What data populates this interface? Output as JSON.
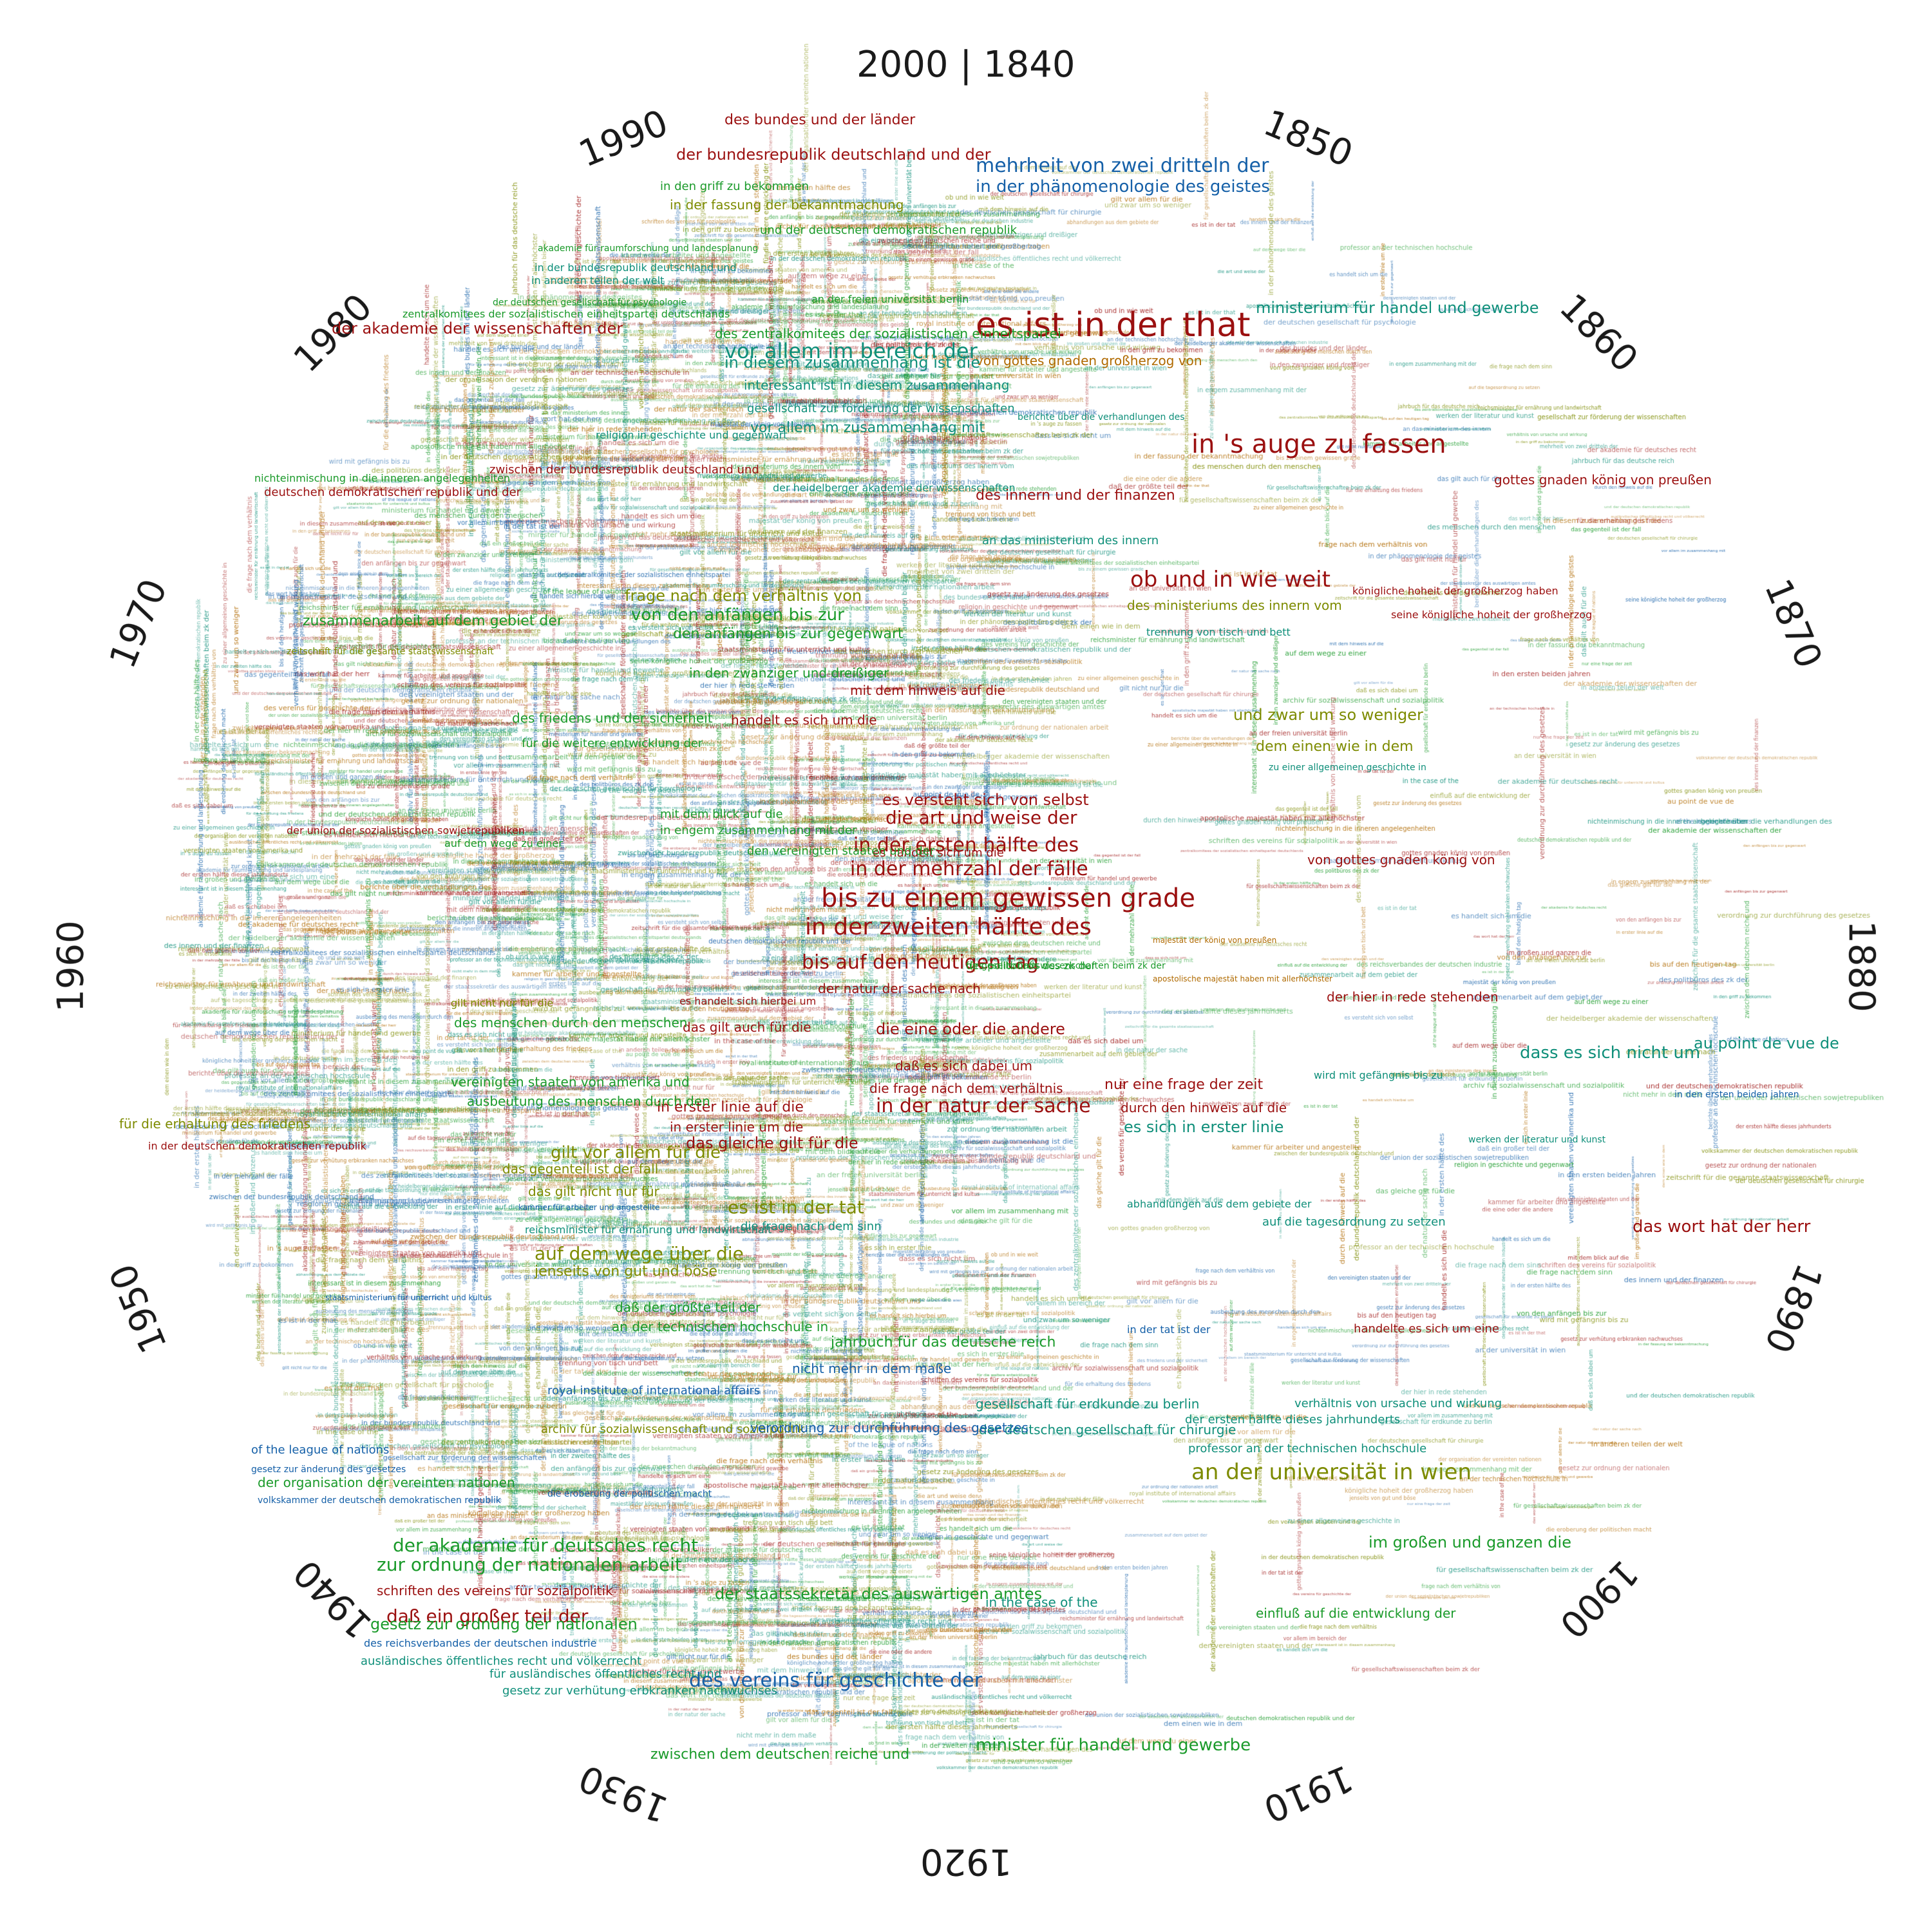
{
  "colors": {
    "dark_red": "#9b1010",
    "olive": "#7d8b00",
    "green": "#1a9a2a",
    "teal": "#0f8f7a",
    "blue": "#1560a8",
    "orange_brown": "#b06a00"
  },
  "title": "2000 | 1840",
  "years": [
    "1850",
    "1860",
    "1870",
    "1880",
    "1890",
    "1900",
    "1910",
    "1920",
    "1930",
    "1940",
    "1950",
    "1960",
    "1970",
    "1980",
    "1990"
  ],
  "phrases": [
    {
      "text": "es ist in der that",
      "color": "dark_red",
      "size": 52
    },
    {
      "text": "in 's auge zu fassen",
      "color": "dark_red",
      "size": 40
    },
    {
      "text": "ob und in wie weit",
      "color": "dark_red",
      "size": 34
    },
    {
      "text": "gottes gnaden könig von preußen",
      "color": "dark_red",
      "size": 20
    },
    {
      "text": "königliche hoheit der großherzog haben",
      "color": "dark_red",
      "size": 16
    },
    {
      "text": "seine königliche hoheit der großherzog",
      "color": "dark_red",
      "size": 16
    },
    {
      "text": "von gottes gnaden könig von",
      "color": "dark_red",
      "size": 20
    },
    {
      "text": "der hier in rede stehenden",
      "color": "dark_red",
      "size": 20
    },
    {
      "text": "das wort hat der herr",
      "color": "dark_red",
      "size": 26
    },
    {
      "text": "mehrheit von zwei dritteln der",
      "color": "blue",
      "size": 30
    },
    {
      "text": "in der phänomenologie des geistes",
      "color": "blue",
      "size": 26
    },
    {
      "text": "von gottes gnaden großherzog von",
      "color": "orange_brown",
      "size": 20
    },
    {
      "text": "ministerium für handel und gewerbe",
      "color": "teal",
      "size": 24
    },
    {
      "text": "berichte über die verhandlungen des",
      "color": "teal",
      "size": 14
    },
    {
      "text": "des innern und der finanzen",
      "color": "dark_red",
      "size": 22
    },
    {
      "text": "an das ministerium des innern",
      "color": "teal",
      "size": 18
    },
    {
      "text": "des ministeriums des innern vom",
      "color": "olive",
      "size": 20
    },
    {
      "text": "trennung von tisch und bett",
      "color": "teal",
      "size": 16
    },
    {
      "text": "und zwar um so weniger",
      "color": "olive",
      "size": 24
    },
    {
      "text": "dem einen wie in dem",
      "color": "olive",
      "size": 22
    },
    {
      "text": "zu einer allgemeinen geschichte in",
      "color": "teal",
      "size": 14
    },
    {
      "text": "majestät der könig von preußen",
      "color": "orange_brown",
      "size": 12
    },
    {
      "text": "apostolische majestät haben mit allerhöchster",
      "color": "orange_brown",
      "size": 12
    },
    {
      "text": "nur eine frage der zeit",
      "color": "dark_red",
      "size": 22
    },
    {
      "text": "durch den hinweis auf die",
      "color": "dark_red",
      "size": 20
    },
    {
      "text": "es sich in erster linie",
      "color": "teal",
      "size": 24
    },
    {
      "text": "dass es sich nicht um",
      "color": "teal",
      "size": 26
    },
    {
      "text": "au point de vue de",
      "color": "teal",
      "size": 24
    },
    {
      "text": "in den ersten beiden jahren",
      "color": "blue",
      "size": 14
    },
    {
      "text": "werken der literatur und kunst",
      "color": "teal",
      "size": 14
    },
    {
      "text": "wird mit gefängnis bis zu",
      "color": "teal",
      "size": 16
    },
    {
      "text": "auf die tagesordnung zu setzen",
      "color": "teal",
      "size": 18
    },
    {
      "text": "abhandlungen aus dem gebiete der",
      "color": "teal",
      "size": 16
    },
    {
      "text": "verhältnis von ursache und wirkung",
      "color": "teal",
      "size": 18
    },
    {
      "text": "handelte es sich um eine",
      "color": "dark_red",
      "size": 18
    },
    {
      "text": "in der tat ist der",
      "color": "blue",
      "size": 16
    },
    {
      "text": "der ersten hälfte dieses jahrhunderts",
      "color": "teal",
      "size": 18
    },
    {
      "text": "professor an der technischen hochschule",
      "color": "teal",
      "size": 18
    },
    {
      "text": "an der universität in wien",
      "color": "olive",
      "size": 34
    },
    {
      "text": "der deutschen gesellschaft für chirurgie",
      "color": "teal",
      "size": 20
    },
    {
      "text": "gesellschaft für erdkunde zu berlin",
      "color": "teal",
      "size": 20
    },
    {
      "text": "im großen und ganzen die",
      "color": "green",
      "size": 24
    },
    {
      "text": "einfluß auf die entwicklung der",
      "color": "green",
      "size": 20
    },
    {
      "text": "in the case of the",
      "color": "teal",
      "size": 20
    },
    {
      "text": "minister für handel und gewerbe",
      "color": "green",
      "size": 26
    },
    {
      "text": "zwischen dem deutschen reiche und",
      "color": "green",
      "size": 22
    },
    {
      "text": "des vereins für geschichte der",
      "color": "blue",
      "size": 30
    },
    {
      "text": "der staatssekretär des auswärtigen amtes",
      "color": "green",
      "size": 24
    },
    {
      "text": "die eroberung der politischen macht",
      "color": "blue",
      "size": 14
    },
    {
      "text": "archiv für sozialwissenschaft und sozialpolitik",
      "color": "olive",
      "size": 18
    },
    {
      "text": "royal institute of international affairs",
      "color": "blue",
      "size": 18
    },
    {
      "text": "verordnung zur durchführung des gesetzes",
      "color": "blue",
      "size": 20
    },
    {
      "text": "nicht mehr in dem maße",
      "color": "blue",
      "size": 20
    },
    {
      "text": "jahrbuch für das deutsche reich",
      "color": "green",
      "size": 22
    },
    {
      "text": "an der technischen hochschule in",
      "color": "green",
      "size": 20
    },
    {
      "text": "daß der größte teil der",
      "color": "green",
      "size": 20
    },
    {
      "text": "daß ein großer teil der",
      "color": "dark_red",
      "size": 28
    },
    {
      "text": "schriften des vereins für sozialpolitik",
      "color": "dark_red",
      "size": 20
    },
    {
      "text": "zur ordnung der nationalen arbeit",
      "color": "green",
      "size": 28
    },
    {
      "text": "der akademie für deutsches recht",
      "color": "green",
      "size": 28
    },
    {
      "text": "gesetz zur ordnung der nationalen",
      "color": "green",
      "size": 24
    },
    {
      "text": "des reichsverbandes der deutschen industrie",
      "color": "blue",
      "size": 16
    },
    {
      "text": "ausländisches öffentliches recht und völkerrecht",
      "color": "teal",
      "size": 18
    },
    {
      "text": "für ausländisches öffentliches recht und",
      "color": "teal",
      "size": 18
    },
    {
      "text": "gesetz zur verhütung erbkranken nachwuchses",
      "color": "teal",
      "size": 18
    },
    {
      "text": "of the league of nations",
      "color": "blue",
      "size": 18
    },
    {
      "text": "gesetz zur änderung des gesetzes",
      "color": "blue",
      "size": 14
    },
    {
      "text": "der organisation der vereinten nationen",
      "color": "green",
      "size": 20
    },
    {
      "text": "volkskammer der deutschen demokratischen republik",
      "color": "blue",
      "size": 14
    },
    {
      "text": "staatsministerium für unterricht und kultus",
      "color": "blue",
      "size": 12
    },
    {
      "text": "kammer für arbeiter und angestellte",
      "color": "blue",
      "size": 12
    },
    {
      "text": "reichsminister für ernährung und landwirtschaft",
      "color": "teal",
      "size": 16
    },
    {
      "text": "auf dem wege über die",
      "color": "olive",
      "size": 28
    },
    {
      "text": "jenseits von gut und böse",
      "color": "olive",
      "size": 22
    },
    {
      "text": "das gilt nicht nur für",
      "color": "olive",
      "size": 20
    },
    {
      "text": "das gegenteil ist der fall",
      "color": "olive",
      "size": 20
    },
    {
      "text": "gilt vor allem für die",
      "color": "olive",
      "size": 26
    },
    {
      "text": "es ist in der tat",
      "color": "olive",
      "size": 28
    },
    {
      "text": "die frage nach dem sinn",
      "color": "teal",
      "size": 18
    },
    {
      "text": "in erster linie auf die",
      "color": "dark_red",
      "size": 22
    },
    {
      "text": "in erster linie um die",
      "color": "dark_red",
      "size": 20
    },
    {
      "text": "das gleiche gilt für die",
      "color": "dark_red",
      "size": 24
    },
    {
      "text": "daß es sich dabei um",
      "color": "dark_red",
      "size": 20
    },
    {
      "text": "die frage nach dem verhältnis",
      "color": "dark_red",
      "size": 20
    },
    {
      "text": "in der natur der sache",
      "color": "dark_red",
      "size": 30
    },
    {
      "text": "die eine oder die andere",
      "color": "dark_red",
      "size": 24
    },
    {
      "text": "der natur der sache nach",
      "color": "dark_red",
      "size": 20
    },
    {
      "text": "bis auf den heutigen tag",
      "color": "dark_red",
      "size": 30
    },
    {
      "text": "in der zweiten hälfte des",
      "color": "dark_red",
      "size": 36
    },
    {
      "text": "bis zu einem gewissen grade",
      "color": "dark_red",
      "size": 40
    },
    {
      "text": "in der mehrzahl der fälle",
      "color": "dark_red",
      "size": 30
    },
    {
      "text": "in der ersten hälfte des",
      "color": "dark_red",
      "size": 30
    },
    {
      "text": "die art und weise der",
      "color": "dark_red",
      "size": 28
    },
    {
      "text": "es versteht sich von selbst",
      "color": "dark_red",
      "size": 24
    },
    {
      "text": "handelt es sich um die",
      "color": "dark_red",
      "size": 20
    },
    {
      "text": "es handelt sich um die",
      "color": "dark_red",
      "size": 18
    },
    {
      "text": "mit dem hinweis auf die",
      "color": "dark_red",
      "size": 20
    },
    {
      "text": "es handelt sich hierbei um",
      "color": "dark_red",
      "size": 16
    },
    {
      "text": "das gilt auch für die",
      "color": "dark_red",
      "size": 20
    },
    {
      "text": "gilt nicht nur für die",
      "color": "olive",
      "size": 16
    },
    {
      "text": "vereinigten staaten von amerika und",
      "color": "green",
      "size": 20
    },
    {
      "text": "ausbeutung des menschen durch den",
      "color": "green",
      "size": 20
    },
    {
      "text": "des menschen durch den menschen",
      "color": "green",
      "size": 20
    },
    {
      "text": "für die erhaltung des friedens",
      "color": "olive",
      "size": 20
    },
    {
      "text": "in der deutschen demokratischen republik",
      "color": "dark_red",
      "size": 16
    },
    {
      "text": "der union der sozialistischen sowjetrepubliken",
      "color": "dark_red",
      "size": 16
    },
    {
      "text": "des friedens und der sicherheit",
      "color": "green",
      "size": 20
    },
    {
      "text": "frage nach dem verhältnis von",
      "color": "olive",
      "size": 24
    },
    {
      "text": "von den anfängen bis zur",
      "color": "green",
      "size": 26
    },
    {
      "text": "den anfängen bis zur gegenwart",
      "color": "green",
      "size": 22
    },
    {
      "text": "in den zwanziger und dreißiger",
      "color": "green",
      "size": 20
    },
    {
      "text": "mit dem blick auf die",
      "color": "green",
      "size": 18
    },
    {
      "text": "in engem zusammenhang mit der",
      "color": "green",
      "size": 18
    },
    {
      "text": "für die weitere entwicklung der",
      "color": "green",
      "size": 18
    },
    {
      "text": "den vereinigten staaten und der",
      "color": "green",
      "size": 18
    },
    {
      "text": "auf dem wege zu einer",
      "color": "green",
      "size": 16
    },
    {
      "text": "zeitschrift für die gesamte staatswissenschaft",
      "color": "olive",
      "size": 14
    },
    {
      "text": "zusammenarbeit auf dem gebiet der",
      "color": "green",
      "size": 22
    },
    {
      "text": "nichteinmischung in die inneren angelegenheiten",
      "color": "green",
      "size": 16
    },
    {
      "text": "deutschen demokratischen republik und der",
      "color": "dark_red",
      "size": 18
    },
    {
      "text": "zwischen der bundesrepublik deutschland und",
      "color": "dark_red",
      "size": 18
    },
    {
      "text": "der akademie der wissenschaften der",
      "color": "dark_red",
      "size": 24
    },
    {
      "text": "zentralkomitees der sozialistischen einheitspartei deutschlands",
      "color": "green",
      "size": 16
    },
    {
      "text": "des zentralkomitees der sozialistischen einheitspartei",
      "color": "green",
      "size": 20
    },
    {
      "text": "vor allem im bereich der",
      "color": "teal",
      "size": 32
    },
    {
      "text": "in diesem zusammenhang ist die",
      "color": "teal",
      "size": 24
    },
    {
      "text": "interessant ist in diesem zusammenhang",
      "color": "teal",
      "size": 20
    },
    {
      "text": "gesellschaft zur förderung der wissenschaften",
      "color": "teal",
      "size": 18
    },
    {
      "text": "vor allem im zusammenhang mit",
      "color": "teal",
      "size": 22
    },
    {
      "text": "religion in geschichte und gegenwart",
      "color": "teal",
      "size": 16
    },
    {
      "text": "der heidelberger akademie der wissenschaften",
      "color": "teal",
      "size": 16
    },
    {
      "text": "in den griff zu bekommen",
      "color": "green",
      "size": 18
    },
    {
      "text": "in der fassung der bekanntmachung",
      "color": "olive",
      "size": 20
    },
    {
      "text": "der bundesrepublik deutschland und der",
      "color": "dark_red",
      "size": 24
    },
    {
      "text": "des bundes und der länder",
      "color": "dark_red",
      "size": 22
    },
    {
      "text": "und der deutschen demokratischen republik",
      "color": "green",
      "size": 18
    },
    {
      "text": "an der freien universität berlin",
      "color": "green",
      "size": 16
    },
    {
      "text": "in der bundesrepublik deutschland und",
      "color": "teal",
      "size": 16
    },
    {
      "text": "in anderen teilen der welt",
      "color": "teal",
      "size": 16
    },
    {
      "text": "der deutschen gesellschaft für psychologie",
      "color": "green",
      "size": 14
    },
    {
      "text": "akademie für raumforschung und landesplanung",
      "color": "green",
      "size": 14
    },
    {
      "text": "für gesellschaftswissenschaften beim zk der",
      "color": "green",
      "size": 14
    },
    {
      "text": "des politbüros des zk der",
      "color": "green",
      "size": 16
    }
  ]
}
